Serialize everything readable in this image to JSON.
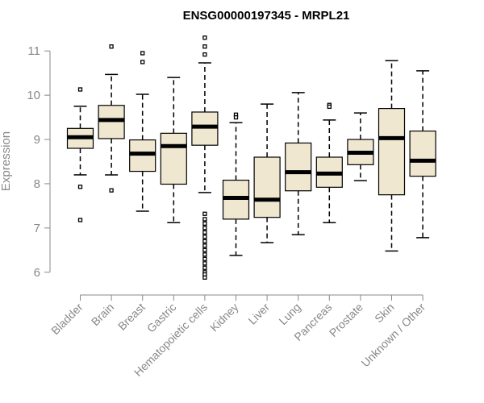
{
  "chart_data": {
    "type": "boxplot",
    "title": "ENSG00000197345 - MRPL21",
    "ylabel": "Expression",
    "xlabel": "",
    "ylim": [
      5.85,
      11.35
    ],
    "yticks": [
      6,
      7,
      8,
      9,
      10,
      11
    ],
    "box_color": "#efe7cf",
    "groups": [
      {
        "name": "Bladder",
        "min": 8.2,
        "q1": 8.8,
        "median": 9.05,
        "q3": 9.25,
        "max": 9.75,
        "outliers": [
          10.13,
          7.93,
          7.18
        ]
      },
      {
        "name": "Brain",
        "min": 8.2,
        "q1": 9.02,
        "median": 9.44,
        "q3": 9.77,
        "max": 10.47,
        "outliers": [
          11.1,
          7.85
        ]
      },
      {
        "name": "Breast",
        "min": 7.38,
        "q1": 8.28,
        "median": 8.68,
        "q3": 8.99,
        "max": 10.02,
        "outliers": [
          10.95,
          10.75
        ]
      },
      {
        "name": "Gastric",
        "min": 7.12,
        "q1": 7.99,
        "median": 8.85,
        "q3": 9.14,
        "max": 10.4,
        "outliers": []
      },
      {
        "name": "Hematopoietic cells",
        "min": 7.8,
        "q1": 8.87,
        "median": 9.29,
        "q3": 9.62,
        "max": 10.73,
        "outliers": [
          11.3,
          11.1,
          10.92,
          7.32,
          7.2,
          7.1,
          7.0,
          6.9,
          6.8,
          6.7,
          6.6,
          6.5,
          6.4,
          6.3,
          6.2,
          6.1,
          6.0,
          5.95,
          5.88
        ]
      },
      {
        "name": "Kidney",
        "min": 6.38,
        "q1": 7.2,
        "median": 7.68,
        "q3": 8.08,
        "max": 9.38,
        "outliers": [
          9.56,
          9.5
        ]
      },
      {
        "name": "Liver",
        "min": 6.67,
        "q1": 7.24,
        "median": 7.64,
        "q3": 8.6,
        "max": 9.8,
        "outliers": []
      },
      {
        "name": "Lung",
        "min": 6.85,
        "q1": 7.84,
        "median": 8.26,
        "q3": 8.92,
        "max": 10.06,
        "outliers": []
      },
      {
        "name": "Pancreas",
        "min": 7.12,
        "q1": 7.92,
        "median": 8.23,
        "q3": 8.6,
        "max": 9.44,
        "outliers": [
          9.78,
          9.74
        ]
      },
      {
        "name": "Prostate",
        "min": 8.07,
        "q1": 8.43,
        "median": 8.7,
        "q3": 9.0,
        "max": 9.6,
        "outliers": []
      },
      {
        "name": "Skin",
        "min": 6.48,
        "q1": 7.75,
        "median": 9.03,
        "q3": 9.7,
        "max": 10.78,
        "outliers": []
      },
      {
        "name": "Unknown / Other",
        "min": 6.78,
        "q1": 8.17,
        "median": 8.52,
        "q3": 9.19,
        "max": 10.55,
        "outliers": []
      }
    ]
  }
}
